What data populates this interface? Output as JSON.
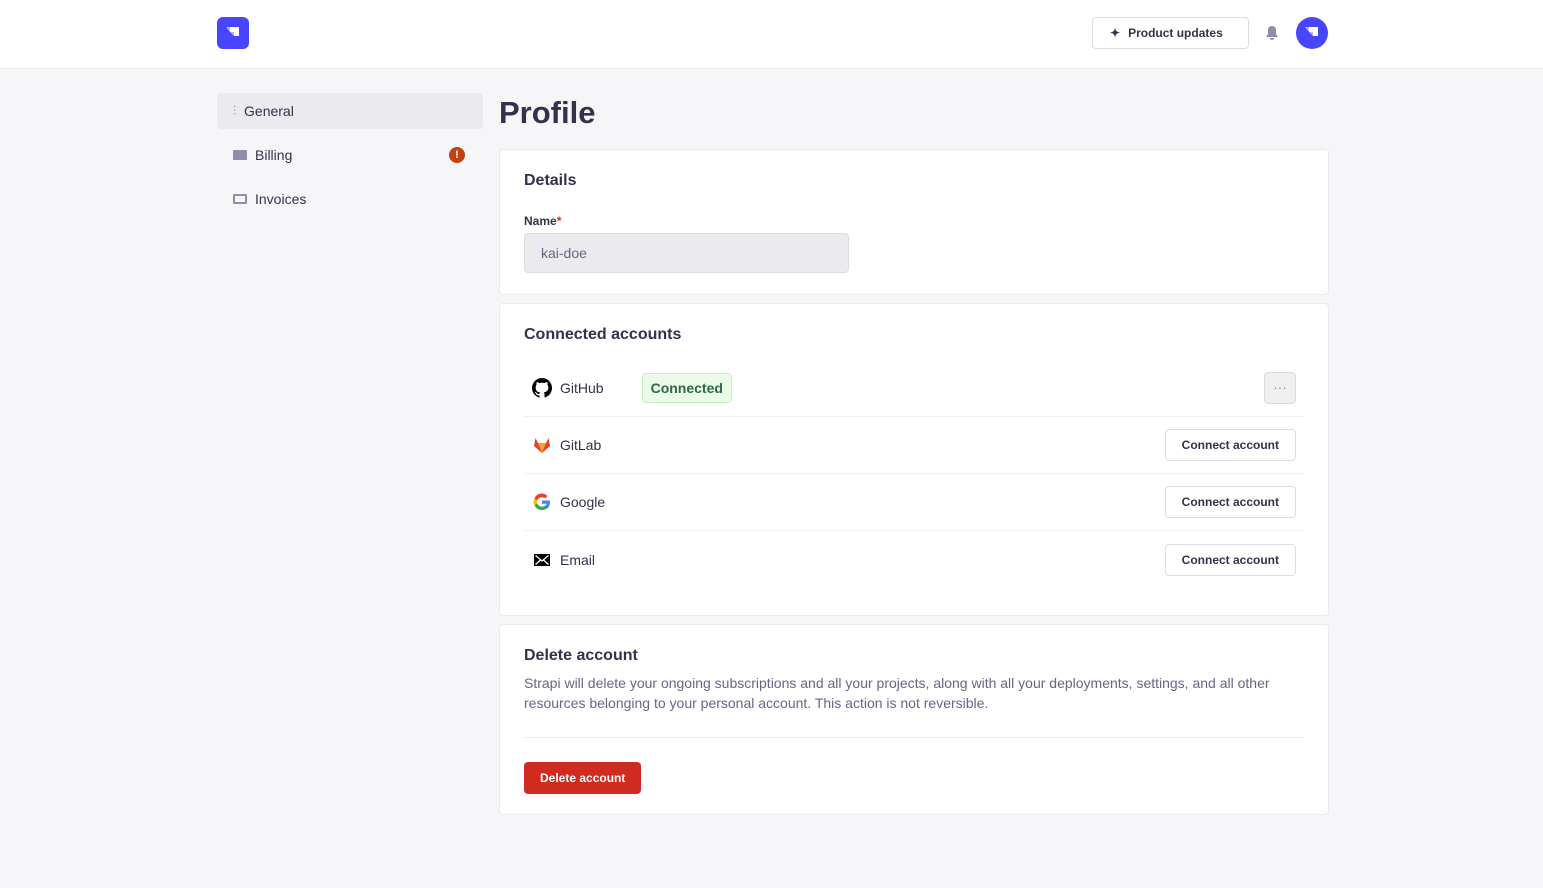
{
  "header": {
    "product_updates": "Product updates"
  },
  "sidebar": {
    "items": [
      {
        "label": "General",
        "icon": "sliders-icon",
        "active": true
      },
      {
        "label": "Billing",
        "icon": "credit-card-icon",
        "badge": "!"
      },
      {
        "label": "Invoices",
        "icon": "invoice-icon"
      }
    ]
  },
  "page_title": "Profile",
  "details": {
    "title": "Details",
    "name_label": "Name",
    "required_mark": "*",
    "name_value": "kai-doe"
  },
  "connected": {
    "title": "Connected accounts",
    "status": "Connected",
    "more": "···",
    "connect_label": "Connect account",
    "accounts": [
      {
        "name": "GitHub"
      },
      {
        "name": "GitLab"
      },
      {
        "name": "Google"
      },
      {
        "name": "Email"
      }
    ]
  },
  "delete": {
    "title": "Delete account",
    "description": "Strapi will delete your ongoing subscriptions and all your projects, along with all your deployments, settings, and all other resources belonging to your personal account. This action is not reversible.",
    "button": "Delete account"
  },
  "colors": {
    "accent": "#4945ff",
    "danger": "#d02b20",
    "success": "#2f6846",
    "warning": "#c2410c"
  }
}
